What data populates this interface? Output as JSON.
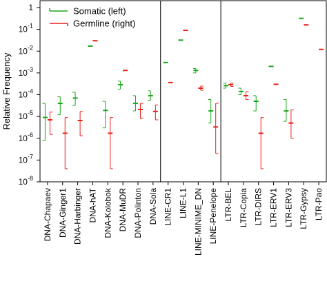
{
  "chart_data": {
    "type": "range",
    "ylabel": "Relative Frequency",
    "yscale": "log",
    "ylim": [
      1e-08,
      1
    ],
    "yticks": [
      {
        "value": 1,
        "label": "1"
      },
      {
        "value": 0.1,
        "label": "10",
        "exp": "-1"
      },
      {
        "value": 0.01,
        "label": "10",
        "exp": "-2"
      },
      {
        "value": 0.001,
        "label": "10",
        "exp": "-3"
      },
      {
        "value": 0.0001,
        "label": "10",
        "exp": "-4"
      },
      {
        "value": 1e-05,
        "label": "10",
        "exp": "-5"
      },
      {
        "value": 1e-06,
        "label": "10",
        "exp": "-6"
      },
      {
        "value": 1e-07,
        "label": "10",
        "exp": "-7"
      },
      {
        "value": 1e-08,
        "label": "10",
        "exp": "-8"
      }
    ],
    "groups": [
      "DNA",
      "LINE",
      "LTR"
    ],
    "categories": [
      "DNA-Chapaev",
      "DNA-Ginger1",
      "DNA-Harbinger",
      "DNA-hAT",
      "DNA-Kolobok",
      "DNA-MuDR",
      "DNA-Polinton",
      "DNA-Sola",
      "LINE-CR1",
      "LINE-L1",
      "LINE-MINIME_DN",
      "LINE-Penelope",
      "LTR-BEL",
      "LTR-Copia",
      "LTR-DIRS",
      "LTR-ERV1",
      "LTR-ERV3",
      "LTR-Gypsy",
      "LTR-Pao"
    ],
    "separators_after": [
      7,
      11
    ],
    "legend": {
      "position": "top-left",
      "entries": [
        "Somatic (left)",
        "Germline (right)"
      ]
    },
    "colors": {
      "somatic": "#1aa61a",
      "germline": "#e8201a"
    },
    "series": [
      {
        "name": "Somatic (left)",
        "mid": [
          9e-06,
          4e-05,
          7e-05,
          0.017,
          1.9e-05,
          0.00029,
          4e-05,
          9e-05,
          0.003,
          0.032,
          0.0013,
          1.8e-05,
          0.00026,
          0.00014,
          5e-05,
          0.002,
          1.8e-05,
          0.32,
          null
        ],
        "low": [
          8e-07,
          1.2e-05,
          3.2e-05,
          null,
          3e-06,
          0.00018,
          1.8e-05,
          5.5e-05,
          null,
          null,
          0.001,
          5e-06,
          0.0002,
          0.0001,
          1.8e-05,
          null,
          6e-06,
          null,
          null
        ],
        "high": [
          4e-05,
          8e-05,
          0.00013,
          null,
          5e-05,
          0.00042,
          9e-05,
          0.00015,
          null,
          null,
          0.0016,
          6e-05,
          0.00034,
          0.0002,
          9e-05,
          null,
          6e-05,
          null,
          null
        ]
      },
      {
        "name": "Germline (right)",
        "mid": [
          7e-06,
          1.7e-06,
          6.5e-06,
          0.03,
          1.7e-06,
          0.0013,
          2.1e-05,
          1.7e-05,
          0.00036,
          0.09,
          0.0002,
          3.3e-06,
          0.00029,
          9e-05,
          1.7e-06,
          0.0003,
          5e-06,
          0.16,
          0.012
        ],
        "low": [
          1.5e-06,
          4e-08,
          1.3e-06,
          null,
          4e-08,
          null,
          8e-06,
          7e-06,
          null,
          null,
          0.00016,
          2e-07,
          0.00024,
          6e-05,
          4e-08,
          null,
          1e-06,
          null,
          null
        ],
        "high": [
          1.6e-05,
          9e-06,
          1.7e-05,
          null,
          9e-06,
          null,
          4e-05,
          3.4e-05,
          null,
          null,
          0.00025,
          4e-05,
          0.00034,
          0.00014,
          9e-06,
          null,
          2e-05,
          null,
          null
        ]
      }
    ]
  }
}
